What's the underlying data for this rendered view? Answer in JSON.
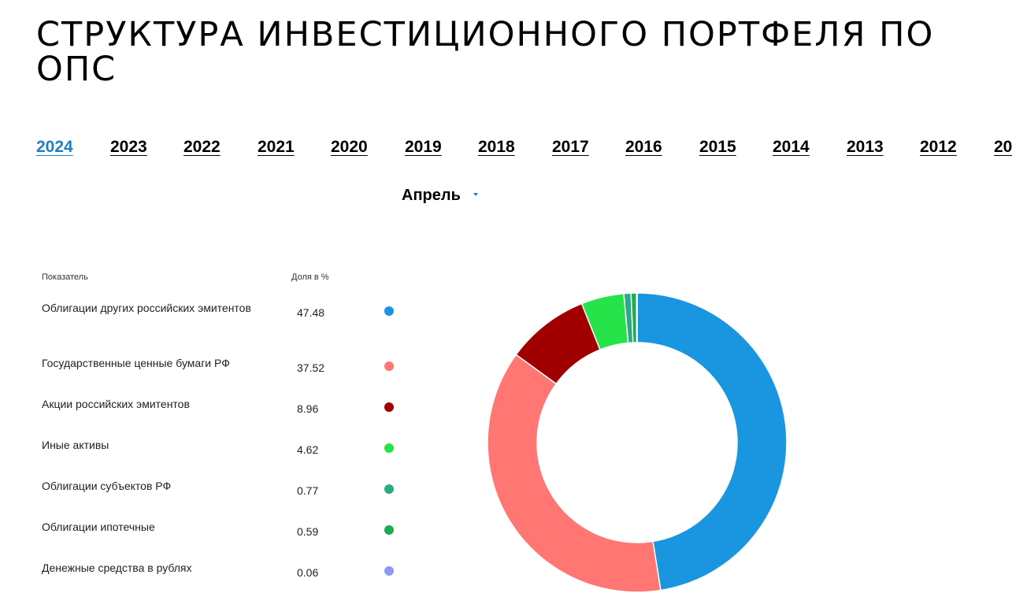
{
  "title": "СТРУКТУРА ИНВЕСТИЦИОННОГО ПОРТФЕЛЯ ПО ОПС",
  "years": [
    "2024",
    "2023",
    "2022",
    "2021",
    "2020",
    "2019",
    "2018",
    "2017",
    "2016",
    "2015",
    "2014",
    "2013",
    "2012",
    "20"
  ],
  "active_year": "2024",
  "month": {
    "selected": "Апрель"
  },
  "table": {
    "header_indicator": "Показатель",
    "header_share": "Доля в %"
  },
  "colors": {
    "accent": "#1e7fc2"
  },
  "chart_data": {
    "type": "pie",
    "variant": "donut",
    "categories": [
      "Облигации других российских эмитентов",
      "Государственные ценные бумаги РФ",
      "Акции российских эмитентов",
      "Иные активы",
      "Облигации субъектов РФ",
      "Облигации ипотечные",
      "Денежные средства в рублях"
    ],
    "values": [
      47.48,
      37.52,
      8.96,
      4.62,
      0.77,
      0.59,
      0.06
    ],
    "value_labels": [
      "47.48",
      "37.52",
      "8.96",
      "4.62",
      "0.77",
      "0.59",
      "0.06"
    ],
    "colors": [
      "#1a96e0",
      "#ff7673",
      "#a00000",
      "#25e349",
      "#2aab84",
      "#1ea955",
      "#8f97f5"
    ]
  }
}
